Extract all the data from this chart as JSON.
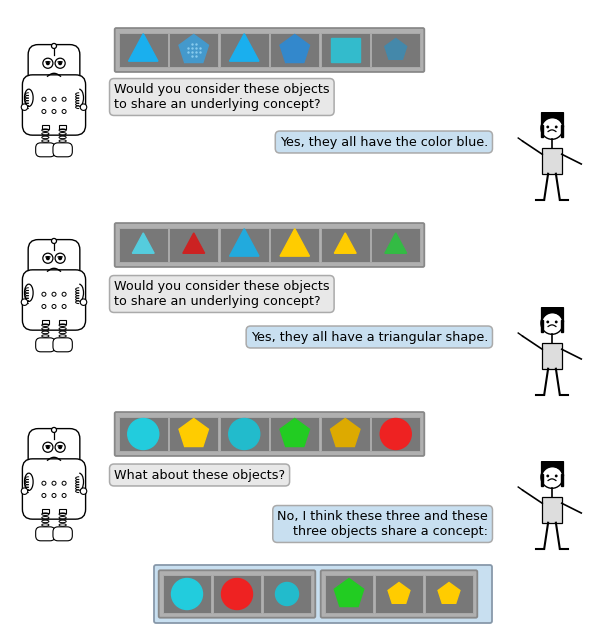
{
  "bg_color": "#ffffff",
  "gray_cell": "#787878",
  "cell_border": "#aaaaaa",
  "outer_border": "#888888",
  "outer_fill": "#b0b0b0",
  "light_blue_bubble": "#c8dff0",
  "light_gray_bubble": "#e8e8e8",
  "bubble_border": "#aaaaaa",
  "row1": {
    "shapes": [
      {
        "type": "triangle",
        "color": "#1aafee"
      },
      {
        "type": "pentagon_dot",
        "color": "#4499cc"
      },
      {
        "type": "triangle",
        "color": "#1aafee"
      },
      {
        "type": "pentagon",
        "color": "#3388cc"
      },
      {
        "type": "square",
        "color": "#33bbcc"
      },
      {
        "type": "pentagon_small",
        "color": "#4488aa"
      }
    ],
    "question": "Would you consider these objects\nto share an underlying concept?",
    "answer": "Yes, they all have the color blue."
  },
  "row2": {
    "shapes": [
      {
        "type": "triangle_sm",
        "color": "#55ccdd"
      },
      {
        "type": "triangle_sm",
        "color": "#cc2222"
      },
      {
        "type": "triangle",
        "color": "#22aadd"
      },
      {
        "type": "triangle",
        "color": "#ffcc00"
      },
      {
        "type": "triangle_sm",
        "color": "#ffcc00"
      },
      {
        "type": "triangle_sm",
        "color": "#33bb44"
      }
    ],
    "question": "Would you consider these objects\nto share an underlying concept?",
    "answer": "Yes, they all have a triangular shape."
  },
  "row3": {
    "shapes": [
      {
        "type": "circle",
        "color": "#22ccdd"
      },
      {
        "type": "pentagon",
        "color": "#ffcc00"
      },
      {
        "type": "circle",
        "color": "#22bbcc"
      },
      {
        "type": "pentagon",
        "color": "#22cc22"
      },
      {
        "type": "pentagon",
        "color": "#ddaa00"
      },
      {
        "type": "circle",
        "color": "#ee2222"
      }
    ],
    "question": "What about these objects?",
    "answer": "No, I think these three and these\nthree objects share a concept:"
  },
  "row3_group1": [
    {
      "type": "circle",
      "color": "#22ccdd"
    },
    {
      "type": "circle",
      "color": "#ee2222"
    },
    {
      "type": "circle_sm",
      "color": "#22bbcc"
    }
  ],
  "row3_group2": [
    {
      "type": "pentagon",
      "color": "#22cc22"
    },
    {
      "type": "pentagon_sm",
      "color": "#ffcc00"
    },
    {
      "type": "pentagon_sm",
      "color": "#ffcc00"
    }
  ],
  "fig_w": 6.16,
  "fig_h": 6.32,
  "dpi": 100
}
